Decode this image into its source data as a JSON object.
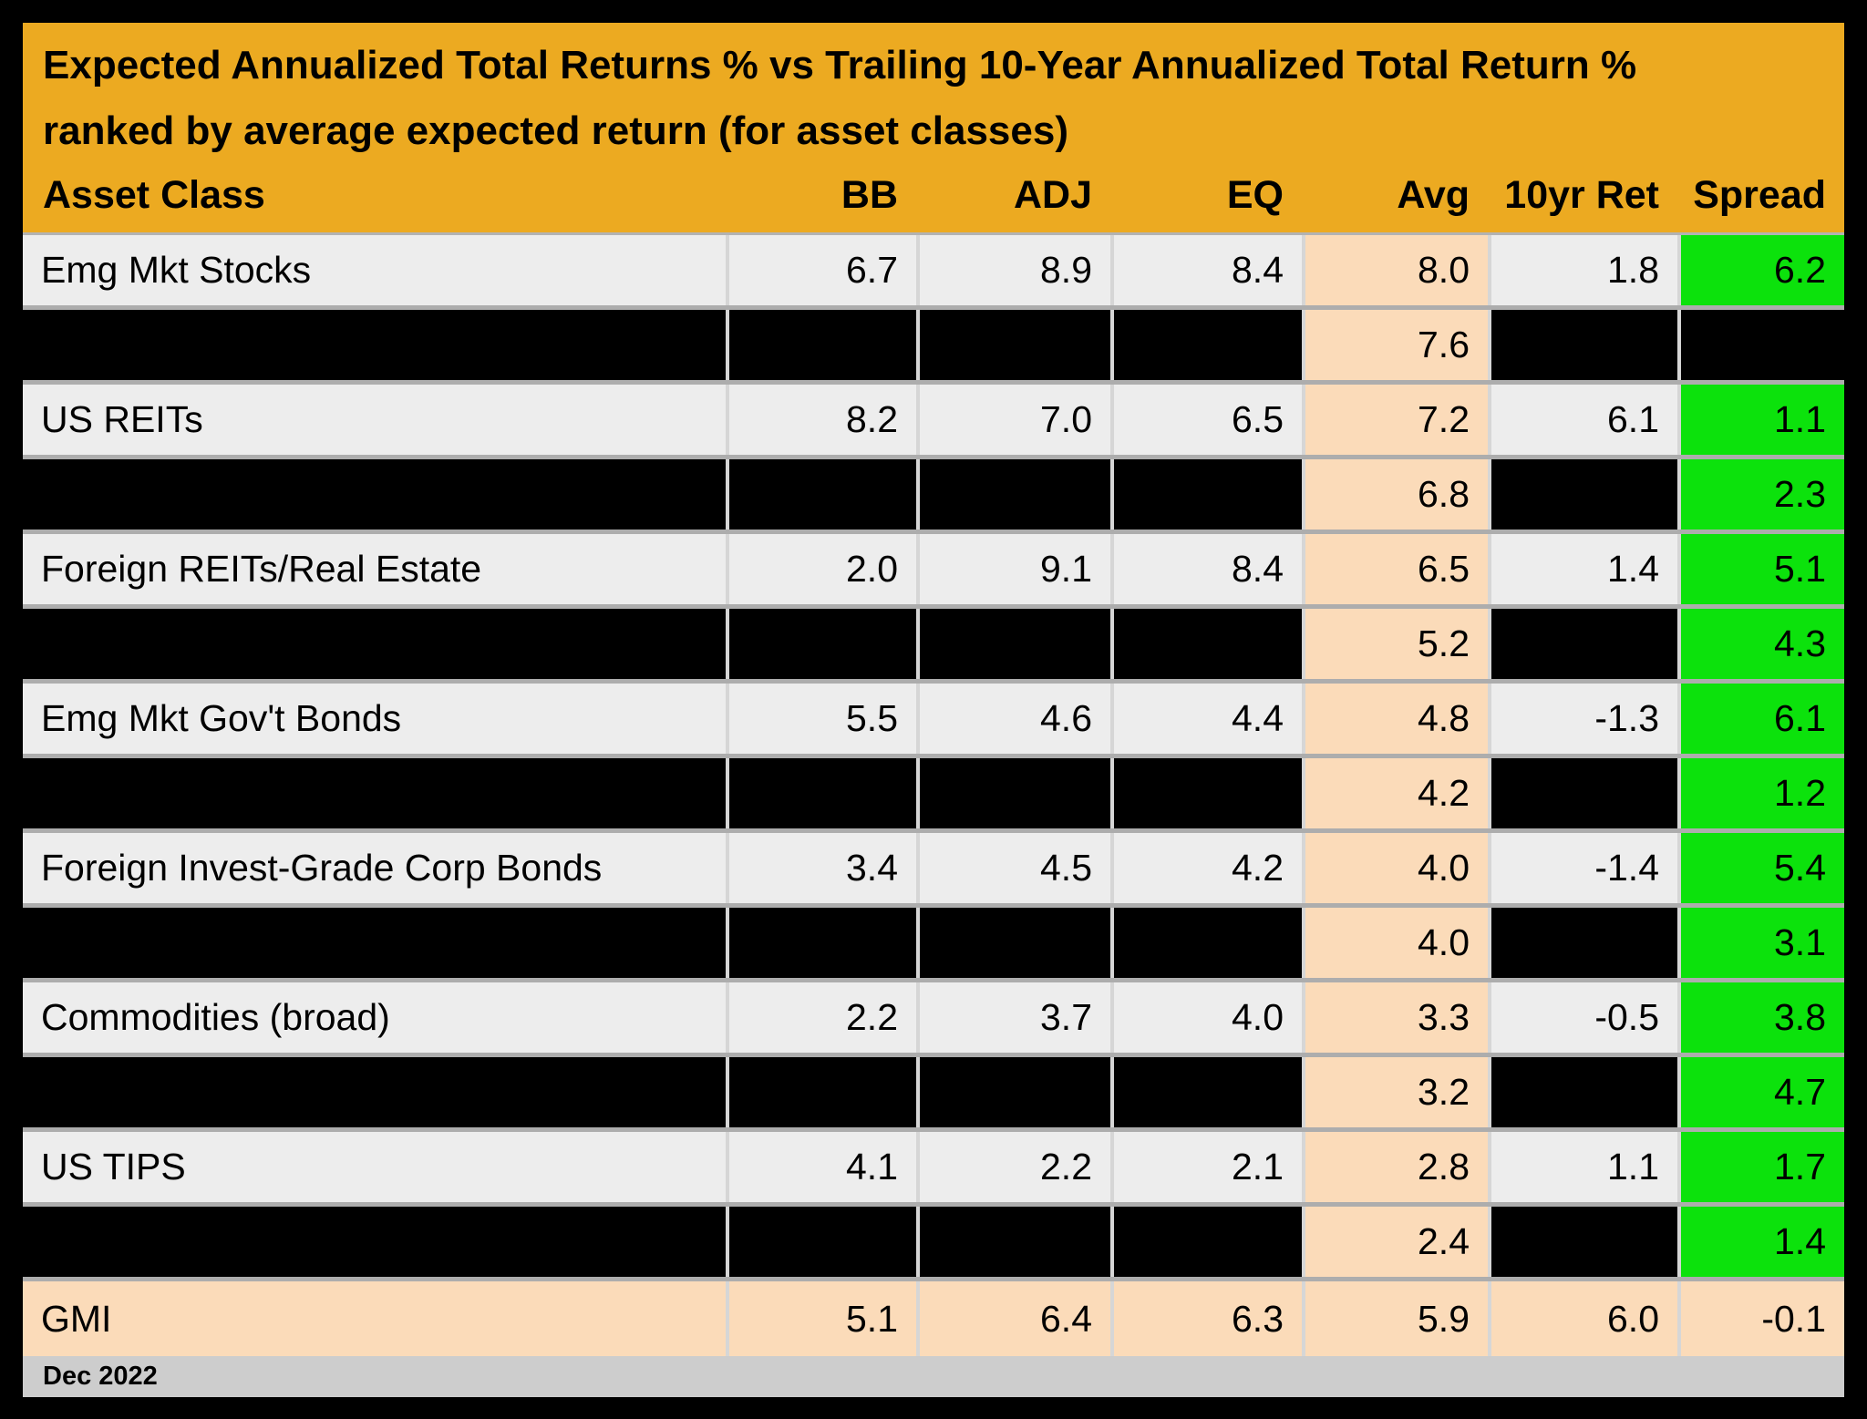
{
  "header": {
    "title_line1": "Expected Annualized Total Returns % vs Trailing 10-Year Annualized Total Return %",
    "title_line2": "ranked by average expected return (for asset classes)"
  },
  "footer": {
    "date": "Dec 2022"
  },
  "colors": {
    "header_gold": "#ECAA21",
    "avg_column_peach": "#FBDBB9",
    "spread_positive_green": "#0CE20C",
    "row_gray": "#EDEDED",
    "redacted_black": "#000000",
    "footer_gray": "#CDCDCD",
    "frame_black": "#000000"
  },
  "chart_data": {
    "type": "table",
    "title": "Expected Annualized Total Returns % vs Trailing 10-Year Annualized Total Return %",
    "subtitle": "ranked by average expected return (for asset classes)",
    "as_of": "Dec 2022",
    "columns": [
      "Asset Class",
      "BB",
      "ADJ",
      "EQ",
      "Avg",
      "10yr Ret",
      "Spread"
    ],
    "rows": [
      {
        "style": "data",
        "asset": "Emg Mkt Stocks",
        "bb": "6.7",
        "adj": "8.9",
        "eq": "8.4",
        "avg": "8.0",
        "ret10": "1.8",
        "spread": "6.2"
      },
      {
        "style": "redacted",
        "asset": null,
        "bb": null,
        "adj": null,
        "eq": null,
        "avg": "7.6",
        "ret10": null,
        "spread": null
      },
      {
        "style": "data",
        "asset": "US REITs",
        "bb": "8.2",
        "adj": "7.0",
        "eq": "6.5",
        "avg": "7.2",
        "ret10": "6.1",
        "spread": "1.1"
      },
      {
        "style": "redacted",
        "asset": null,
        "bb": null,
        "adj": null,
        "eq": null,
        "avg": "6.8",
        "ret10": null,
        "spread": "2.3"
      },
      {
        "style": "data",
        "asset": "Foreign REITs/Real Estate",
        "bb": "2.0",
        "adj": "9.1",
        "eq": "8.4",
        "avg": "6.5",
        "ret10": "1.4",
        "spread": "5.1"
      },
      {
        "style": "redacted",
        "asset": null,
        "bb": null,
        "adj": null,
        "eq": null,
        "avg": "5.2",
        "ret10": null,
        "spread": "4.3"
      },
      {
        "style": "data",
        "asset": "Emg Mkt Gov't Bonds",
        "bb": "5.5",
        "adj": "4.6",
        "eq": "4.4",
        "avg": "4.8",
        "ret10": "-1.3",
        "spread": "6.1"
      },
      {
        "style": "redacted",
        "asset": null,
        "bb": null,
        "adj": null,
        "eq": null,
        "avg": "4.2",
        "ret10": null,
        "spread": "1.2"
      },
      {
        "style": "data",
        "asset": "Foreign Invest-Grade Corp Bonds",
        "bb": "3.4",
        "adj": "4.5",
        "eq": "4.2",
        "avg": "4.0",
        "ret10": "-1.4",
        "spread": "5.4"
      },
      {
        "style": "redacted",
        "asset": null,
        "bb": null,
        "adj": null,
        "eq": null,
        "avg": "4.0",
        "ret10": null,
        "spread": "3.1"
      },
      {
        "style": "data",
        "asset": "Commodities (broad)",
        "bb": "2.2",
        "adj": "3.7",
        "eq": "4.0",
        "avg": "3.3",
        "ret10": "-0.5",
        "spread": "3.8"
      },
      {
        "style": "redacted",
        "asset": null,
        "bb": null,
        "adj": null,
        "eq": null,
        "avg": "3.2",
        "ret10": null,
        "spread": "4.7"
      },
      {
        "style": "data",
        "asset": "US TIPS",
        "bb": "4.1",
        "adj": "2.2",
        "eq": "2.1",
        "avg": "2.8",
        "ret10": "1.1",
        "spread": "1.7"
      },
      {
        "style": "redacted",
        "asset": null,
        "bb": null,
        "adj": null,
        "eq": null,
        "avg": "2.4",
        "ret10": null,
        "spread": "1.4"
      },
      {
        "style": "summary",
        "asset": "GMI",
        "bb": "5.1",
        "adj": "6.4",
        "eq": "6.3",
        "avg": "5.9",
        "ret10": "6.0",
        "spread": "-0.1"
      }
    ]
  }
}
